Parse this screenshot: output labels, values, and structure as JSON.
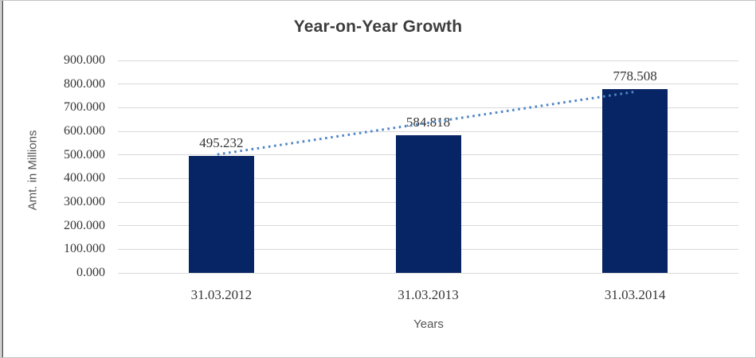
{
  "chart_data": {
    "type": "bar",
    "title": "Year-on-Year Growth",
    "xlabel": "Years",
    "ylabel": "Amt. in Millions",
    "categories": [
      "31.03.2012",
      "31.03.2013",
      "31.03.2014"
    ],
    "values": [
      495.232,
      584.818,
      778.508
    ],
    "data_labels": [
      "495.232",
      "584.818",
      "778.508"
    ],
    "ylim": [
      0,
      900
    ],
    "yticks": [
      {
        "value": 0,
        "label": "0.000"
      },
      {
        "value": 100,
        "label": "100.000"
      },
      {
        "value": 200,
        "label": "200.000"
      },
      {
        "value": 300,
        "label": "300.000"
      },
      {
        "value": 400,
        "label": "400.000"
      },
      {
        "value": 500,
        "label": "500.000"
      },
      {
        "value": 600,
        "label": "600.000"
      },
      {
        "value": 700,
        "label": "700.000"
      },
      {
        "value": 800,
        "label": "800.000"
      },
      {
        "value": 900,
        "label": "900.000"
      }
    ],
    "grid": true,
    "legend_position": "none",
    "trendline": {
      "style": "dotted",
      "description": "linear dotted trendline across bar tops"
    },
    "colors": {
      "bar": "#072464",
      "trendline": "#4f86c6",
      "gridline": "#d9d9d9",
      "title_text": "#3d3d3d",
      "axis_title_text": "#545454",
      "tick_text": "#363636",
      "border": "#c2c2c2"
    }
  }
}
